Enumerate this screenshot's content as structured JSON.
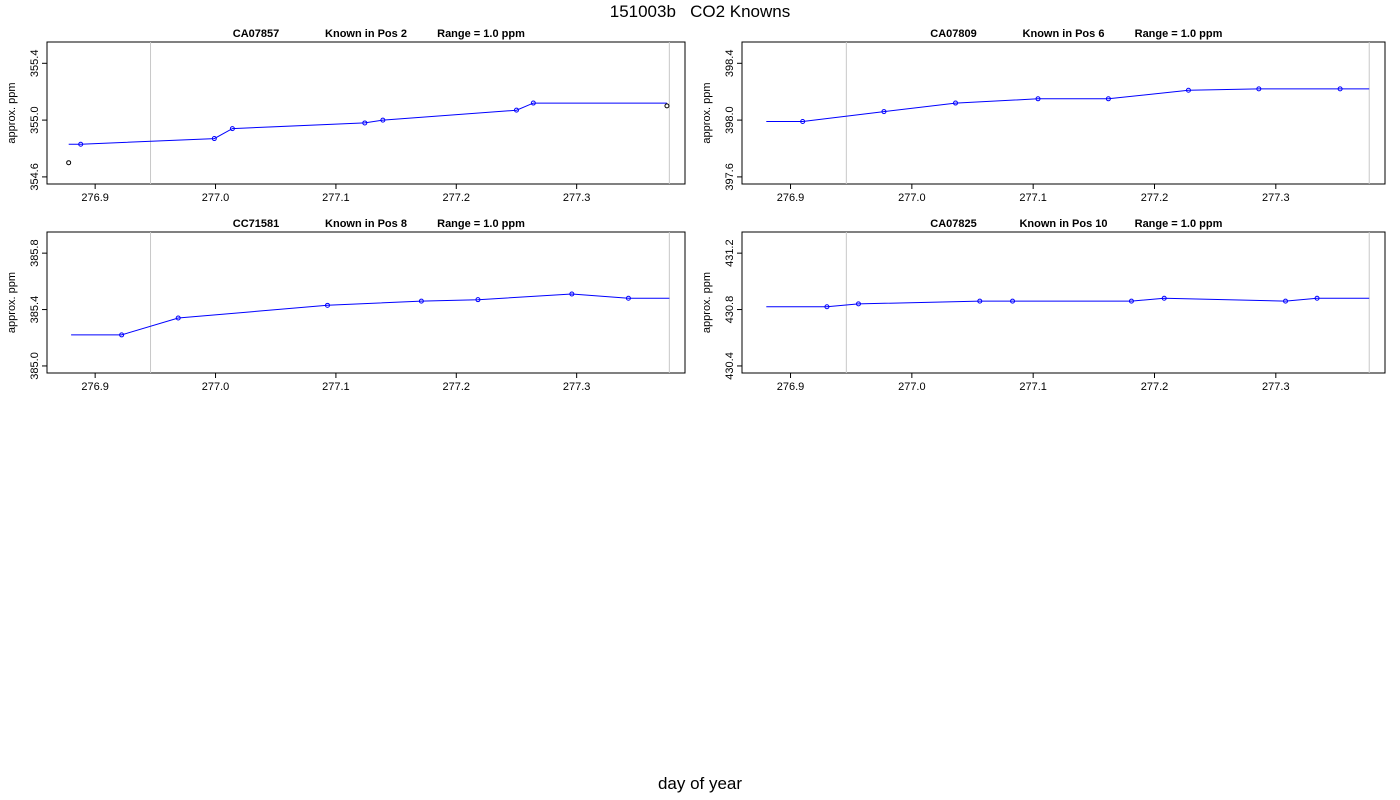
{
  "page": {
    "title": "151003b   CO2 Knowns",
    "xlabel": "day of year"
  },
  "chart_data": [
    {
      "type": "line",
      "title_parts": [
        "CA07857",
        "Known in Pos 2",
        "Range = 1.0 ppm"
      ],
      "ylabel": "approx. ppm",
      "xlim": [
        276.86,
        277.39
      ],
      "ylim": [
        354.55,
        355.55
      ],
      "xticks": [
        "276.9",
        "277.0",
        "277.1",
        "277.2",
        "277.3"
      ],
      "yticks": [
        "354.6",
        "355.0",
        "355.4"
      ],
      "vlines": [
        276.946,
        277.377
      ],
      "line_color": "#0000ff",
      "series": [
        {
          "x": [
            276.878,
            276.888,
            276.999,
            277.014,
            277.124,
            277.139,
            277.25,
            277.264,
            277.375
          ],
          "y": [
            354.83,
            354.83,
            354.87,
            354.94,
            354.98,
            355.0,
            355.07,
            355.12,
            355.12
          ]
        }
      ],
      "points": [
        {
          "x": 276.878,
          "y": 354.7,
          "color": "#000000"
        },
        {
          "x": 276.888,
          "y": 354.83,
          "color": "#0000ff"
        },
        {
          "x": 276.999,
          "y": 354.87,
          "color": "#0000ff"
        },
        {
          "x": 277.014,
          "y": 354.94,
          "color": "#0000ff"
        },
        {
          "x": 277.124,
          "y": 354.98,
          "color": "#0000ff"
        },
        {
          "x": 277.139,
          "y": 355.0,
          "color": "#0000ff"
        },
        {
          "x": 277.25,
          "y": 355.07,
          "color": "#0000ff"
        },
        {
          "x": 277.264,
          "y": 355.12,
          "color": "#0000ff"
        },
        {
          "x": 277.375,
          "y": 355.1,
          "color": "#000000"
        }
      ]
    },
    {
      "type": "line",
      "title_parts": [
        "CA07809",
        "Known in Pos 6",
        "Range = 1.0 ppm"
      ],
      "ylabel": "approx. ppm",
      "xlim": [
        276.86,
        277.39
      ],
      "ylim": [
        397.55,
        398.55
      ],
      "xticks": [
        "276.9",
        "277.0",
        "277.1",
        "277.2",
        "277.3"
      ],
      "yticks": [
        "397.6",
        "398.0",
        "398.4"
      ],
      "vlines": [
        276.946,
        277.377
      ],
      "line_color": "#0000ff",
      "series": [
        {
          "x": [
            276.88,
            276.91,
            276.977,
            277.036,
            277.104,
            277.162,
            277.228,
            277.286,
            277.353,
            277.377
          ],
          "y": [
            397.99,
            397.99,
            398.06,
            398.12,
            398.15,
            398.15,
            398.21,
            398.22,
            398.22,
            398.22
          ]
        }
      ],
      "points": [
        {
          "x": 276.91,
          "y": 397.99,
          "color": "#0000ff"
        },
        {
          "x": 276.977,
          "y": 398.06,
          "color": "#0000ff"
        },
        {
          "x": 277.036,
          "y": 398.12,
          "color": "#0000ff"
        },
        {
          "x": 277.104,
          "y": 398.15,
          "color": "#0000ff"
        },
        {
          "x": 277.162,
          "y": 398.15,
          "color": "#0000ff"
        },
        {
          "x": 277.228,
          "y": 398.21,
          "color": "#0000ff"
        },
        {
          "x": 277.286,
          "y": 398.22,
          "color": "#0000ff"
        },
        {
          "x": 277.353,
          "y": 398.22,
          "color": "#0000ff"
        }
      ]
    },
    {
      "type": "line",
      "title_parts": [
        "CC71581",
        "Known in Pos 8",
        "Range = 1.0 ppm"
      ],
      "ylabel": "approx. ppm",
      "xlim": [
        276.86,
        277.39
      ],
      "ylim": [
        384.95,
        385.95
      ],
      "xticks": [
        "276.9",
        "277.0",
        "277.1",
        "277.2",
        "277.3"
      ],
      "yticks": [
        "385.0",
        "385.4",
        "385.8"
      ],
      "vlines": [
        276.946,
        277.377
      ],
      "line_color": "#0000ff",
      "series": [
        {
          "x": [
            276.88,
            276.922,
            276.969,
            277.093,
            277.171,
            277.218,
            277.296,
            277.343,
            277.377
          ],
          "y": [
            385.22,
            385.22,
            385.34,
            385.43,
            385.46,
            385.47,
            385.51,
            385.48,
            385.48
          ]
        }
      ],
      "points": [
        {
          "x": 276.922,
          "y": 385.22,
          "color": "#0000ff"
        },
        {
          "x": 276.969,
          "y": 385.34,
          "color": "#0000ff"
        },
        {
          "x": 277.093,
          "y": 385.43,
          "color": "#0000ff"
        },
        {
          "x": 277.171,
          "y": 385.46,
          "color": "#0000ff"
        },
        {
          "x": 277.218,
          "y": 385.47,
          "color": "#0000ff"
        },
        {
          "x": 277.296,
          "y": 385.51,
          "color": "#0000ff"
        },
        {
          "x": 277.343,
          "y": 385.48,
          "color": "#0000ff"
        }
      ]
    },
    {
      "type": "line",
      "title_parts": [
        "CA07825",
        "Known in Pos 10",
        "Range = 1.0 ppm"
      ],
      "ylabel": "approx. ppm",
      "xlim": [
        276.86,
        277.39
      ],
      "ylim": [
        430.35,
        431.35
      ],
      "xticks": [
        "276.9",
        "277.0",
        "277.1",
        "277.2",
        "277.3"
      ],
      "yticks": [
        "430.4",
        "430.8",
        "431.2"
      ],
      "vlines": [
        276.946,
        277.377
      ],
      "line_color": "#0000ff",
      "series": [
        {
          "x": [
            276.88,
            276.93,
            276.956,
            277.056,
            277.083,
            277.181,
            277.208,
            277.308,
            277.334,
            277.377
          ],
          "y": [
            430.82,
            430.82,
            430.84,
            430.86,
            430.86,
            430.86,
            430.88,
            430.86,
            430.88,
            430.88
          ]
        }
      ],
      "points": [
        {
          "x": 276.93,
          "y": 430.82,
          "color": "#0000ff"
        },
        {
          "x": 276.956,
          "y": 430.84,
          "color": "#0000ff"
        },
        {
          "x": 277.056,
          "y": 430.86,
          "color": "#0000ff"
        },
        {
          "x": 277.083,
          "y": 430.86,
          "color": "#0000ff"
        },
        {
          "x": 277.181,
          "y": 430.86,
          "color": "#0000ff"
        },
        {
          "x": 277.208,
          "y": 430.88,
          "color": "#0000ff"
        },
        {
          "x": 277.308,
          "y": 430.86,
          "color": "#0000ff"
        },
        {
          "x": 277.334,
          "y": 430.88,
          "color": "#0000ff"
        }
      ]
    }
  ]
}
